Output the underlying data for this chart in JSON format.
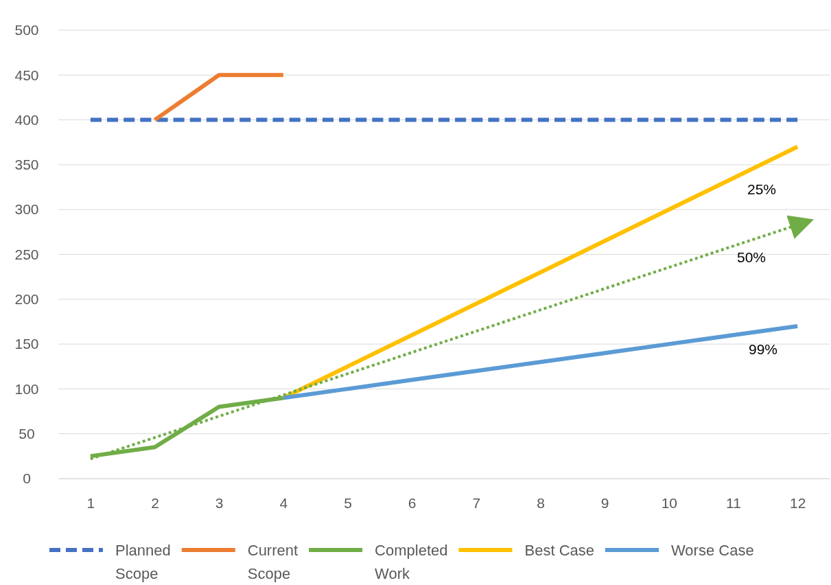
{
  "chart_data": {
    "type": "line",
    "xlim": [
      0.5,
      12.5
    ],
    "xticks": [
      1,
      2,
      3,
      4,
      5,
      6,
      7,
      8,
      9,
      10,
      11,
      12
    ],
    "ylim": [
      0,
      500
    ],
    "yticks": [
      0,
      50,
      100,
      150,
      200,
      250,
      300,
      350,
      400,
      450,
      500
    ],
    "grid": "y",
    "legend": "bottom",
    "marker": "none",
    "series": [
      {
        "name": "Planned Scope",
        "color": "#4472c4",
        "line_style": "dashed",
        "x": [
          1,
          2,
          3,
          4,
          5,
          6,
          7,
          8,
          9,
          10,
          11,
          12
        ],
        "values": [
          400,
          400,
          400,
          400,
          400,
          400,
          400,
          400,
          400,
          400,
          400,
          400
        ]
      },
      {
        "name": "Current Scope",
        "color": "#ed7d31",
        "line_style": "solid",
        "x": [
          2,
          3,
          4
        ],
        "values": [
          400,
          450,
          450
        ]
      },
      {
        "name": "Completed Work",
        "color": "#70ad47",
        "line_style": "solid",
        "x": [
          1,
          2,
          3,
          4
        ],
        "values": [
          25,
          35,
          80,
          90
        ]
      },
      {
        "name": "Best Case",
        "color": "#ffc000",
        "line_style": "solid",
        "x": [
          4,
          12
        ],
        "values": [
          90,
          370
        ]
      },
      {
        "name": "Worse Case",
        "color": "#5b9bd5",
        "line_style": "solid",
        "x": [
          4,
          5,
          6,
          7,
          8,
          9,
          10,
          11,
          12
        ],
        "values": [
          90,
          100,
          110,
          120,
          130,
          140,
          150,
          160,
          170
        ]
      },
      {
        "color": "#70ad47",
        "line_style": "dotted",
        "x": [
          1,
          12
        ],
        "values": [
          22,
          283
        ]
      }
    ],
    "annotations": [
      "25%",
      "50%",
      "99%"
    ]
  }
}
